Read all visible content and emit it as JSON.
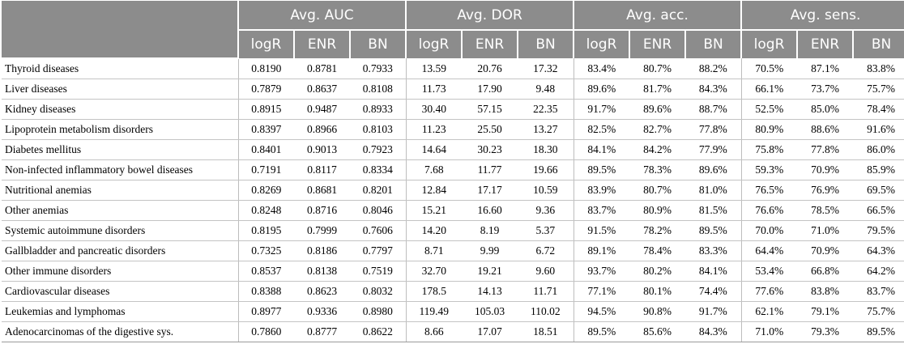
{
  "table": {
    "groups": [
      "Avg. AUC",
      "Avg. DOR",
      "Avg. acc.",
      "Avg. sens."
    ],
    "subheaders": [
      "logR",
      "ENR",
      "BN"
    ],
    "rows": [
      {
        "name": "Thyroid diseases",
        "values": [
          "0.8190",
          "0.8781",
          "0.7933",
          "13.59",
          "20.76",
          "17.32",
          "83.4%",
          "80.7%",
          "88.2%",
          "70.5%",
          "87.1%",
          "83.8%"
        ]
      },
      {
        "name": "Liver diseases",
        "values": [
          "0.7879",
          "0.8637",
          "0.8108",
          "11.73",
          "17.90",
          "9.48",
          "89.6%",
          "81.7%",
          "84.3%",
          "66.1%",
          "73.7%",
          "75.7%"
        ]
      },
      {
        "name": "Kidney diseases",
        "values": [
          "0.8915",
          "0.9487",
          "0.8933",
          "30.40",
          "57.15",
          "22.35",
          "91.7%",
          "89.6%",
          "88.7%",
          "52.5%",
          "85.0%",
          "78.4%"
        ]
      },
      {
        "name": "Lipoprotein metabolism disorders",
        "values": [
          "0.8397",
          "0.8966",
          "0.8103",
          "11.23",
          "25.50",
          "13.27",
          "82.5%",
          "82.7%",
          "77.8%",
          "80.9%",
          "88.6%",
          "91.6%"
        ]
      },
      {
        "name": "Diabetes mellitus",
        "values": [
          "0.8401",
          "0.9013",
          "0.7923",
          "14.64",
          "30.23",
          "18.30",
          "84.1%",
          "84.2%",
          "77.9%",
          "75.8%",
          "77.8%",
          "86.0%"
        ]
      },
      {
        "name": "Non-infected inflammatory bowel diseases",
        "values": [
          "0.7191",
          "0.8117",
          "0.8334",
          "7.68",
          "11.77",
          "19.66",
          "89.5%",
          "78.3%",
          "89.6%",
          "59.3%",
          "70.9%",
          "85.9%"
        ]
      },
      {
        "name": "Nutritional anemias",
        "values": [
          "0.8269",
          "0.8681",
          "0.8201",
          "12.84",
          "17.17",
          "10.59",
          "83.9%",
          "80.7%",
          "81.0%",
          "76.5%",
          "76.9%",
          "69.5%"
        ]
      },
      {
        "name": "Other anemias",
        "values": [
          "0.8248",
          "0.8716",
          "0.8046",
          "15.21",
          "16.60",
          "9.36",
          "83.7%",
          "80.9%",
          "81.5%",
          "76.6%",
          "78.5%",
          "66.5%"
        ]
      },
      {
        "name": "Systemic autoimmune disorders",
        "values": [
          "0.8195",
          "0.7999",
          "0.7606",
          "14.20",
          "8.19",
          "5.37",
          "91.5%",
          "78.2%",
          "89.5%",
          "70.0%",
          "71.0%",
          "79.5%"
        ]
      },
      {
        "name": "Gallbladder and pancreatic disorders",
        "values": [
          "0.7325",
          "0.8186",
          "0.7797",
          "8.71",
          "9.99",
          "6.72",
          "89.1%",
          "78.4%",
          "83.3%",
          "64.4%",
          "70.9%",
          "64.3%"
        ]
      },
      {
        "name": "Other immune disorders",
        "values": [
          "0.8537",
          "0.8138",
          "0.7519",
          "32.70",
          "19.21",
          "9.60",
          "93.7%",
          "80.2%",
          "84.1%",
          "53.4%",
          "66.8%",
          "64.2%"
        ]
      },
      {
        "name": "Cardiovascular diseases",
        "values": [
          "0.8388",
          "0.8623",
          "0.8032",
          "178.5",
          "14.13",
          "11.71",
          "77.1%",
          "80.1%",
          "74.4%",
          "77.6%",
          "83.8%",
          "83.7%"
        ]
      },
      {
        "name": "Leukemias and lymphomas",
        "values": [
          "0.8977",
          "0.9336",
          "0.8980",
          "119.49",
          "105.03",
          "110.02",
          "94.5%",
          "90.8%",
          "91.7%",
          "62.1%",
          "79.1%",
          "75.7%"
        ]
      },
      {
        "name": "Adenocarcinomas of the digestive sys.",
        "values": [
          "0.7860",
          "0.8777",
          "0.8622",
          "8.66",
          "17.07",
          "18.51",
          "89.5%",
          "85.6%",
          "84.3%",
          "71.0%",
          "79.3%",
          "89.5%"
        ]
      }
    ]
  }
}
